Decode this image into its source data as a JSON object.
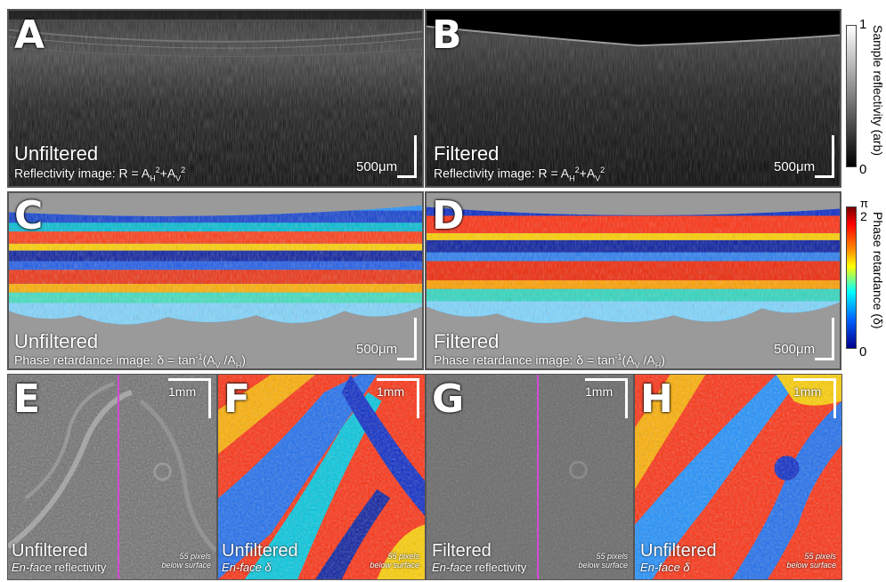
{
  "panels": {
    "A": {
      "letter": "A",
      "title": "Unfiltered",
      "subtitle": "Reflectivity image: R = A",
      "scale": "500μm"
    },
    "B": {
      "letter": "B",
      "title": "Filtered",
      "subtitle": "Reflectivity image: R = A",
      "scale": "500μm"
    },
    "C": {
      "letter": "C",
      "title": "Unfiltered",
      "subtitle": "Phase retardance image: δ = tan",
      "scale": "500μm"
    },
    "D": {
      "letter": "D",
      "title": "Filtered",
      "subtitle": "Phase retardance image: δ = tan",
      "scale": "500μm"
    },
    "E": {
      "letter": "E",
      "title": "Unfiltered",
      "subtitle_em": "En-face",
      "subtitle_rest": " reflectivity",
      "scale": "1mm",
      "depth_line1": "55 pixels",
      "depth_line2": "below surface"
    },
    "F": {
      "letter": "F",
      "title": "Unfiltered",
      "subtitle_em": "En-face δ",
      "scale": "1mm",
      "depth_line1": "55 pixels",
      "depth_line2": "below surface"
    },
    "G": {
      "letter": "G",
      "title": "Filtered",
      "subtitle_em": "En-face",
      "subtitle_rest": " reflectivity",
      "scale": "1mm",
      "depth_line1": "55 pixels",
      "depth_line2": "below surface"
    },
    "H": {
      "letter": "H",
      "title": "Unfiltered",
      "subtitle_em": "En-face δ",
      "scale": "1mm",
      "depth_line1": "55 pixels",
      "depth_line2": "below surface"
    }
  },
  "formula_parts": {
    "R_rest_1": "+A",
    "sub_H": "H",
    "sub_V": "V",
    "sq": "2",
    "inv": "-1",
    "delta_open": "(A",
    "delta_mid": " /A",
    "delta_close": ")"
  },
  "colorbars": {
    "reflectivity": {
      "top": "1",
      "bottom": "0",
      "title": "Sample reflectivity (arb)"
    },
    "retardance": {
      "top_pi": "π",
      "top": "2",
      "bottom": "0",
      "title": "Phase retardance (δ)"
    }
  },
  "colors": {
    "magenta_line": "#d24ad8",
    "background_gray": "#9a9a9a"
  }
}
